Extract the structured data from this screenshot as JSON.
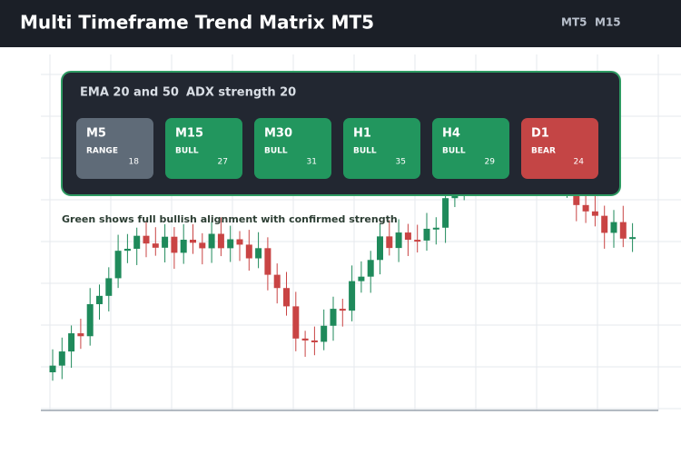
{
  "header": {
    "title": "Multi Timeframe Trend Matrix MT5",
    "tabs": [
      "MT5",
      "M15"
    ]
  },
  "panel": {
    "settings": [
      "EMA 20 and 50",
      "ADX strength 20"
    ],
    "tiles": [
      {
        "timeframe": "M5",
        "state": "RANGE",
        "strength": 18,
        "color": "#5f6b78"
      },
      {
        "timeframe": "M15",
        "state": "BULL",
        "strength": 27,
        "color": "#22965e"
      },
      {
        "timeframe": "M30",
        "state": "BULL",
        "strength": 31,
        "color": "#22965e"
      },
      {
        "timeframe": "H1",
        "state": "BULL",
        "strength": 35,
        "color": "#22965e"
      },
      {
        "timeframe": "H4",
        "state": "BULL",
        "strength": 29,
        "color": "#22965e"
      },
      {
        "timeframe": "D1",
        "state": "BEAR",
        "strength": 24,
        "color": "#c44545"
      }
    ]
  },
  "note": "Green shows full bullish alignment with confirmed strength"
}
